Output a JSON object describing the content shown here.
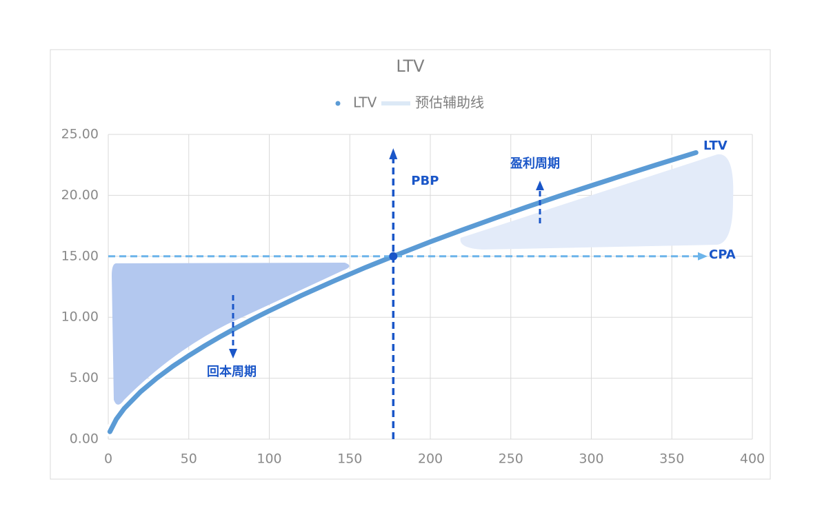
{
  "chart_data": {
    "type": "line",
    "title": "LTV",
    "x": [
      1,
      5,
      10,
      20,
      30,
      40,
      50,
      60,
      70,
      80,
      90,
      100,
      120,
      140,
      160,
      177,
      200,
      220,
      240,
      260,
      280,
      300,
      320,
      340,
      365
    ],
    "series": [
      {
        "name": "LTV",
        "color": "#5b9bd5",
        "values": [
          0.61,
          1.64,
          2.53,
          3.88,
          4.99,
          5.97,
          6.85,
          7.67,
          8.44,
          9.17,
          9.87,
          10.53,
          11.79,
          12.97,
          14.1,
          15.0,
          16.19,
          17.17,
          18.12,
          19.05,
          19.94,
          20.8,
          21.65,
          22.49,
          23.51
        ]
      },
      {
        "name": "预估辅助线",
        "color": "#dce9f6"
      }
    ],
    "xlim": [
      0,
      400
    ],
    "xticks": [
      0,
      50,
      100,
      150,
      200,
      250,
      300,
      350,
      400
    ],
    "ylim": [
      0,
      25
    ],
    "yticks": [
      {
        "value": 0,
        "label": "0.00"
      },
      {
        "value": 5,
        "label": "5.00"
      },
      {
        "value": 10,
        "label": "10.00"
      },
      {
        "value": 15,
        "label": "15.00"
      },
      {
        "value": 20,
        "label": "20.00"
      },
      {
        "value": 25,
        "label": "25.00"
      }
    ],
    "grid": true,
    "reference_lines": [
      {
        "label": "CPA",
        "y": 15,
        "color": "#6cb4ea"
      },
      {
        "label": "PBP",
        "x": 177,
        "color": "#1a56c8"
      }
    ],
    "annotations": [
      {
        "text": "回本周期"
      },
      {
        "text": "盈利周期"
      },
      {
        "text": "LTV"
      }
    ]
  }
}
